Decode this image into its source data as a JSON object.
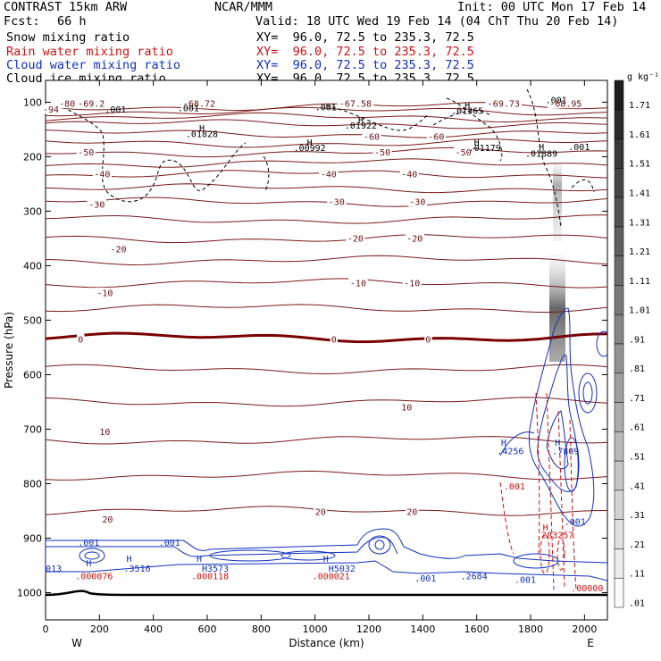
{
  "header": {
    "model": "CONTRAST 15km ARW",
    "center": "NCAR/MMM",
    "init": "Init: 00 UTC Mon 17 Feb 14",
    "fcst_label": "Fcst:",
    "fcst_value": "66 h",
    "valid": "Valid: 18 UTC Wed 19 Feb 14 (04 ChT Thu 20 Feb 14)",
    "fields": [
      {
        "name": "Snow mixing ratio",
        "xy": "XY=  96.0, 72.5 to 235.3, 72.5",
        "color": "#000000"
      },
      {
        "name": "Rain water mixing ratio",
        "xy": "XY=  96.0, 72.5 to 235.3, 72.5",
        "color": "#d01010"
      },
      {
        "name": "Cloud water mixing ratio",
        "xy": "XY=  96.0, 72.5 to 235.3, 72.5",
        "color": "#1030c0"
      },
      {
        "name": "Cloud ice mixing ratio",
        "xy": "XY=  96.0, 72.5 to 235.3, 72.5",
        "color": "#000000"
      }
    ]
  },
  "chart_data": {
    "type": "contour",
    "xlabel": "Distance (km)",
    "ylabel": "Pressure (hPa)",
    "xlim": [
      0,
      2085
    ],
    "ylim": [
      1050,
      60
    ],
    "x_ticks": [
      0,
      200,
      400,
      600,
      800,
      1000,
      1200,
      1400,
      1600,
      1800,
      2000
    ],
    "y_ticks": [
      100,
      200,
      300,
      400,
      500,
      600,
      700,
      800,
      900,
      1000
    ],
    "x_end_labels": {
      "left": "W",
      "right": "E"
    },
    "colorbar": {
      "unit": "g kg⁻¹",
      "levels": [
        "1.71",
        "1.61",
        "1.51",
        "1.41",
        "1.31",
        "1.21",
        "1.11",
        "1.01",
        ".91",
        ".81",
        ".71",
        ".61",
        ".51",
        ".41",
        ".31",
        ".21",
        ".11",
        ".01"
      ]
    },
    "temperature_contours": {
      "interval_C": 5,
      "color": "#7a1a1a",
      "bold_zero_color": "#7a0000",
      "levels": [
        {
          "t": -80,
          "p": 108
        },
        {
          "t": -75,
          "p": 117
        },
        {
          "t": -70,
          "p": 128
        },
        {
          "t": -65,
          "p": 140
        },
        {
          "t": -60,
          "p": 158
        },
        {
          "t": -55,
          "p": 175
        },
        {
          "t": -50,
          "p": 192
        },
        {
          "t": -45,
          "p": 212
        },
        {
          "t": -40,
          "p": 232
        },
        {
          "t": -35,
          "p": 258
        },
        {
          "t": -30,
          "p": 283
        },
        {
          "t": -25,
          "p": 315
        },
        {
          "t": -20,
          "p": 350
        },
        {
          "t": -15,
          "p": 390
        },
        {
          "t": -10,
          "p": 432
        },
        {
          "t": -5,
          "p": 478
        },
        {
          "t": 0,
          "p": 532
        },
        {
          "t": 5,
          "p": 590
        },
        {
          "t": 10,
          "p": 650
        },
        {
          "t": 15,
          "p": 720
        },
        {
          "t": 20,
          "p": 785
        },
        {
          "t": 25,
          "p": 850
        }
      ],
      "labels": [
        {
          "text": "-80",
          "x": 80,
          "p": 103
        },
        {
          "text": "-69.2",
          "x": 170,
          "p": 103
        },
        {
          "text": "-68.72",
          "x": 570,
          "p": 103
        },
        {
          "text": "-67.58",
          "x": 1150,
          "p": 103
        },
        {
          "text": "-69.73",
          "x": 1700,
          "p": 103
        },
        {
          "text": "-68.95",
          "x": 1930,
          "p": 103
        },
        {
          "text": "-94",
          "x": 20,
          "p": 113
        },
        {
          "text": "-60",
          "x": 1210,
          "p": 163
        },
        {
          "text": "-60",
          "x": 1450,
          "p": 163
        },
        {
          "text": "-50",
          "x": 150,
          "p": 192
        },
        {
          "text": "-50",
          "x": 1250,
          "p": 192
        },
        {
          "text": "-50",
          "x": 1550,
          "p": 192
        },
        {
          "text": "-40",
          "x": 210,
          "p": 232
        },
        {
          "text": "-40",
          "x": 1050,
          "p": 232
        },
        {
          "text": "-40",
          "x": 1350,
          "p": 232
        },
        {
          "text": "-30",
          "x": 190,
          "p": 288
        },
        {
          "text": "-30",
          "x": 1080,
          "p": 283
        },
        {
          "text": "-30",
          "x": 1380,
          "p": 283
        },
        {
          "text": "-20",
          "x": 270,
          "p": 370
        },
        {
          "text": "-20",
          "x": 1150,
          "p": 350
        },
        {
          "text": "-20",
          "x": 1370,
          "p": 350
        },
        {
          "text": "-10",
          "x": 220,
          "p": 450
        },
        {
          "text": "-10",
          "x": 1160,
          "p": 432
        },
        {
          "text": "-10",
          "x": 1360,
          "p": 432
        },
        {
          "text": "0",
          "x": 130,
          "p": 535
        },
        {
          "text": "0",
          "x": 1070,
          "p": 535
        },
        {
          "text": "0",
          "x": 1420,
          "p": 535
        },
        {
          "text": "10",
          "x": 220,
          "p": 705
        },
        {
          "text": "10",
          "x": 1340,
          "p": 660
        },
        {
          "text": "20",
          "x": 230,
          "p": 866
        },
        {
          "text": "20",
          "x": 1020,
          "p": 852
        },
        {
          "text": "20",
          "x": 1360,
          "p": 852
        }
      ]
    },
    "extrema_labels": [
      {
        "text": ".001",
        "x": 260,
        "p": 113,
        "color": "#000000"
      },
      {
        "text": ".001",
        "x": 530,
        "p": 111,
        "color": "#000000"
      },
      {
        "text": ".001",
        "x": 1040,
        "p": 109,
        "color": "#000000"
      },
      {
        "text": "H",
        "x": 580,
        "p": 148,
        "color": "#000000"
      },
      {
        "text": ".01828",
        "x": 580,
        "p": 158,
        "color": "#000000"
      },
      {
        "text": "H",
        "x": 1170,
        "p": 133,
        "color": "#000000"
      },
      {
        "text": ".01922",
        "x": 1170,
        "p": 143,
        "color": "#000000"
      },
      {
        "text": "H",
        "x": 1565,
        "p": 106,
        "color": "#000000"
      },
      {
        "text": ".01365",
        "x": 1565,
        "p": 116,
        "color": "#000000"
      },
      {
        "text": "H",
        "x": 980,
        "p": 174,
        "color": "#000000"
      },
      {
        "text": ".00992",
        "x": 980,
        "p": 184,
        "color": "#000000"
      },
      {
        "text": "H",
        "x": 1600,
        "p": 174,
        "color": "#000000"
      },
      {
        "text": ".01179",
        "x": 1630,
        "p": 184,
        "color": "#000000"
      },
      {
        "text": "H",
        "x": 1840,
        "p": 182,
        "color": "#000000"
      },
      {
        "text": ".01889",
        "x": 1840,
        "p": 194,
        "color": "#000000"
      },
      {
        "text": ".001",
        "x": 1895,
        "p": 96,
        "color": "#000000"
      },
      {
        "text": ".001",
        "x": 1980,
        "p": 182,
        "color": "#000000"
      },
      {
        "text": ".001",
        "x": 160,
        "p": 908,
        "color": "#1030c0"
      },
      {
        "text": ".001",
        "x": 460,
        "p": 908,
        "color": "#1030c0"
      },
      {
        "text": "013",
        "x": 30,
        "p": 956,
        "color": "#1030c0"
      },
      {
        "text": "H",
        "x": 160,
        "p": 946,
        "color": "#1030c0"
      },
      {
        "text": "H",
        "x": 310,
        "p": 938,
        "color": "#1030c0"
      },
      {
        "text": ".3516",
        "x": 340,
        "p": 956,
        "color": "#1030c0"
      },
      {
        "text": "H",
        "x": 570,
        "p": 938,
        "color": "#1030c0"
      },
      {
        "text": "H3573",
        "x": 630,
        "p": 956,
        "color": "#1030c0"
      },
      {
        "text": "H",
        "x": 1040,
        "p": 938,
        "color": "#1030c0"
      },
      {
        "text": "H5032",
        "x": 1100,
        "p": 956,
        "color": "#1030c0"
      },
      {
        "text": ".2684",
        "x": 1590,
        "p": 970,
        "color": "#1030c0"
      },
      {
        "text": ".001",
        "x": 1410,
        "p": 974,
        "color": "#1030c0"
      },
      {
        "text": ".001",
        "x": 1780,
        "p": 976,
        "color": "#1030c0"
      },
      {
        "text": ".001",
        "x": 1965,
        "p": 870,
        "color": "#1030c0"
      },
      {
        "text": "H",
        "x": 1700,
        "p": 725,
        "color": "#1030c0"
      },
      {
        "text": ".4256",
        "x": 1725,
        "p": 740,
        "color": "#1030c0"
      },
      {
        "text": "H",
        "x": 1900,
        "p": 725,
        "color": "#1030c0"
      },
      {
        "text": ".7809",
        "x": 1930,
        "p": 740,
        "color": "#1030c0"
      },
      {
        "text": ".000076",
        "x": 180,
        "p": 970,
        "color": "#d01010"
      },
      {
        "text": ".000118",
        "x": 610,
        "p": 970,
        "color": "#d01010"
      },
      {
        "text": ".000021",
        "x": 1060,
        "p": 970,
        "color": "#d01010"
      },
      {
        "text": ".001",
        "x": 1740,
        "p": 805,
        "color": "#d01010"
      },
      {
        "text": "H",
        "x": 1855,
        "p": 880,
        "color": "#d01010"
      },
      {
        "text": "283257",
        "x": 1900,
        "p": 894,
        "color": "#d01010"
      },
      {
        "text": ".00000",
        "x": 2010,
        "p": 992,
        "color": "#d01010"
      }
    ]
  }
}
